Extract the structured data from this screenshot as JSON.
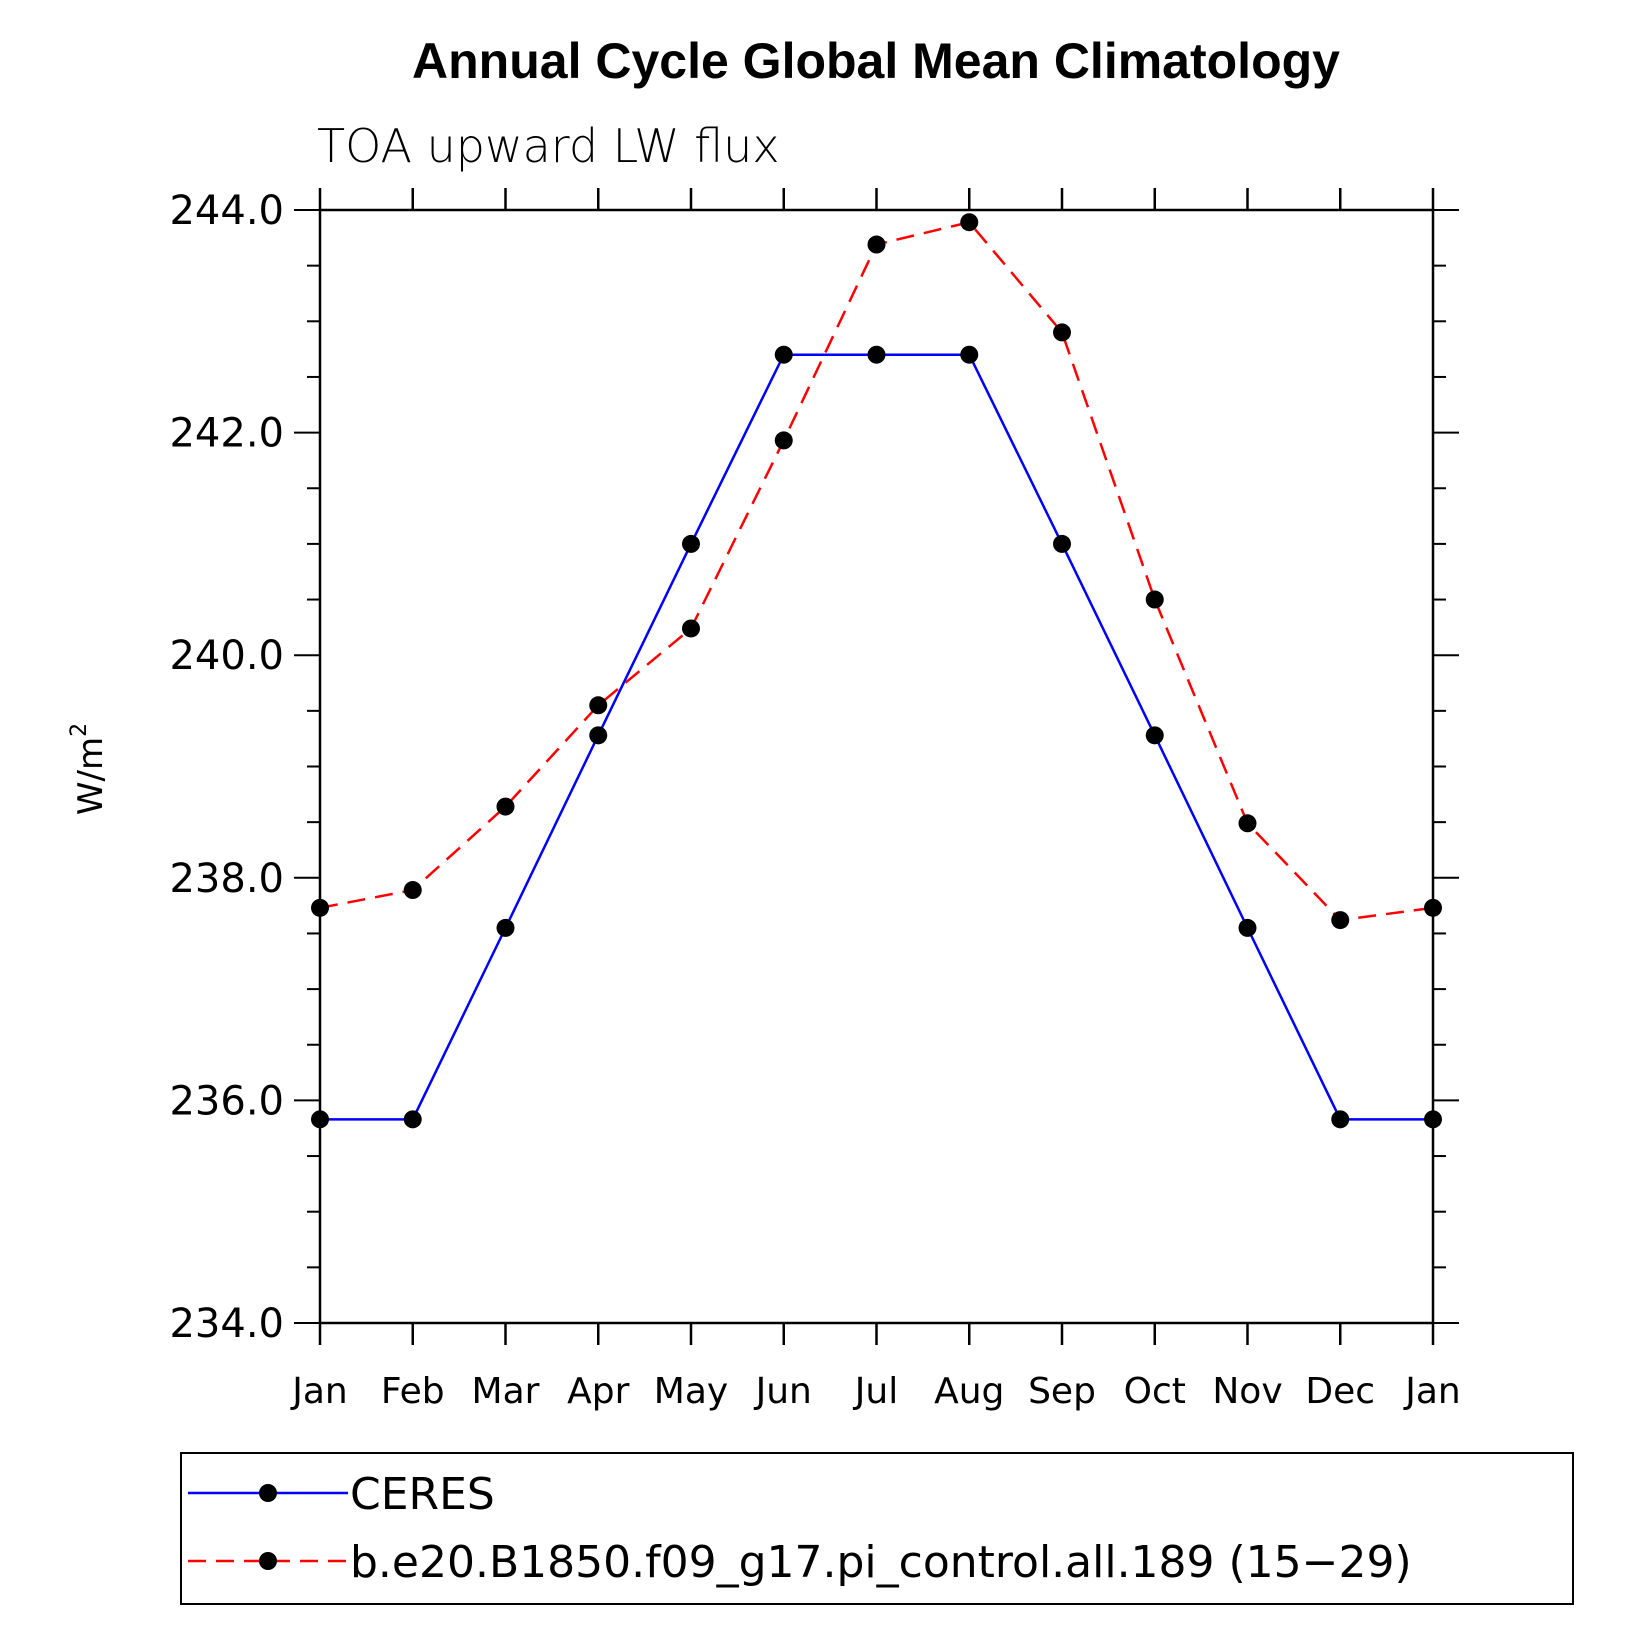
{
  "chart_data": {
    "type": "line",
    "title": "Annual Cycle Global Mean Climatology",
    "subtitle": "TOA upward LW flux",
    "xlabel": "",
    "ylabel": "W/m",
    "ylabel_superscript": "2",
    "categories": [
      "Jan",
      "Feb",
      "Mar",
      "Apr",
      "May",
      "Jun",
      "Jul",
      "Aug",
      "Sep",
      "Oct",
      "Nov",
      "Dec",
      "Jan"
    ],
    "ylim": [
      234.0,
      244.0
    ],
    "yticks": [
      "234.0",
      "236.0",
      "238.0",
      "240.0",
      "242.0",
      "244.0"
    ],
    "series": [
      {
        "name": "CERES",
        "color": "#0000ff",
        "dash": "solid",
        "values": [
          235.83,
          235.83,
          237.55,
          239.28,
          241.0,
          242.7,
          242.7,
          242.7,
          241.0,
          239.28,
          237.55,
          235.83,
          235.83
        ]
      },
      {
        "name": "b.e20.B1850.f09_g17.pi_control.all.189 (15-29)",
        "color": "#ff0000",
        "dash": "dashed",
        "values": [
          237.73,
          237.89,
          238.64,
          239.55,
          240.24,
          241.93,
          243.69,
          243.89,
          242.9,
          240.5,
          238.49,
          237.62,
          237.73
        ]
      }
    ],
    "legend": [
      "CERES",
      "b.e20.B1850.f09_g17.pi_control.all.189 (15−29)"
    ],
    "grid": false
  }
}
